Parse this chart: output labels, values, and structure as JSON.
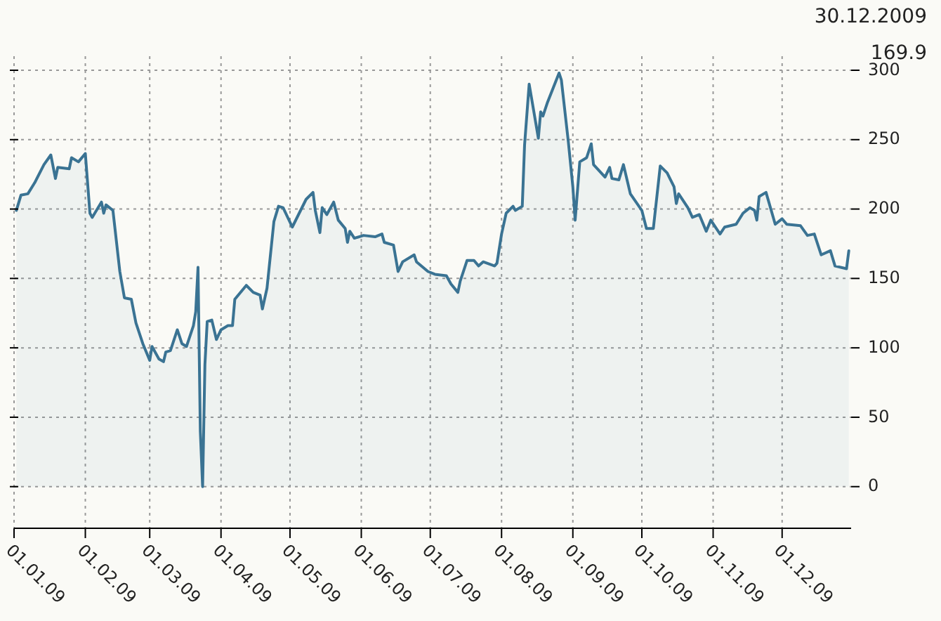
{
  "chart_data": {
    "type": "area",
    "x": [
      "2009-01-02",
      "2009-01-04",
      "2009-01-07",
      "2009-01-10",
      "2009-01-14",
      "2009-01-17",
      "2009-01-19",
      "2009-01-20",
      "2009-01-25",
      "2009-01-26",
      "2009-01-29",
      "2009-02-01",
      "2009-02-03",
      "2009-02-04",
      "2009-02-08",
      "2009-02-09",
      "2009-02-10",
      "2009-02-13",
      "2009-02-16",
      "2009-02-18",
      "2009-02-21",
      "2009-02-23",
      "2009-02-26",
      "2009-03-01",
      "2009-03-02",
      "2009-03-05",
      "2009-03-07",
      "2009-03-08",
      "2009-03-10",
      "2009-03-13",
      "2009-03-15",
      "2009-03-17",
      "2009-03-20",
      "2009-03-21",
      "2009-03-22",
      "2009-03-23",
      "2009-03-24",
      "2009-03-25",
      "2009-03-26",
      "2009-03-28",
      "2009-03-30",
      "2009-04-01",
      "2009-04-04",
      "2009-04-06",
      "2009-04-07",
      "2009-04-12",
      "2009-04-15",
      "2009-04-18",
      "2009-04-19",
      "2009-04-21",
      "2009-04-24",
      "2009-04-26",
      "2009-04-28",
      "2009-05-02",
      "2009-05-08",
      "2009-05-11",
      "2009-05-12",
      "2009-05-14",
      "2009-05-15",
      "2009-05-17",
      "2009-05-20",
      "2009-05-22",
      "2009-05-25",
      "2009-05-26",
      "2009-05-27",
      "2009-05-29",
      "2009-06-02",
      "2009-06-07",
      "2009-06-10",
      "2009-06-11",
      "2009-06-15",
      "2009-06-17",
      "2009-06-19",
      "2009-06-24",
      "2009-06-25",
      "2009-06-30",
      "2009-07-03",
      "2009-07-08",
      "2009-07-10",
      "2009-07-13",
      "2009-07-14",
      "2009-07-17",
      "2009-07-20",
      "2009-07-22",
      "2009-07-24",
      "2009-07-29",
      "2009-07-30",
      "2009-08-01",
      "2009-08-03",
      "2009-08-06",
      "2009-08-07",
      "2009-08-10",
      "2009-08-11",
      "2009-08-13",
      "2009-08-17",
      "2009-08-18",
      "2009-08-19",
      "2009-08-21",
      "2009-08-26",
      "2009-08-27",
      "2009-08-30",
      "2009-09-01",
      "2009-09-02",
      "2009-09-04",
      "2009-09-07",
      "2009-09-09",
      "2009-09-10",
      "2009-09-15",
      "2009-09-17",
      "2009-09-18",
      "2009-09-21",
      "2009-09-23",
      "2009-09-26",
      "2009-10-01",
      "2009-10-03",
      "2009-10-06",
      "2009-10-09",
      "2009-10-12",
      "2009-10-15",
      "2009-10-16",
      "2009-10-17",
      "2009-10-21",
      "2009-10-23",
      "2009-10-26",
      "2009-10-29",
      "2009-10-31",
      "2009-11-04",
      "2009-11-06",
      "2009-11-11",
      "2009-11-14",
      "2009-11-17",
      "2009-11-19",
      "2009-11-20",
      "2009-11-21",
      "2009-11-24",
      "2009-11-28",
      "2009-12-01",
      "2009-12-03",
      "2009-12-09",
      "2009-12-12",
      "2009-12-15",
      "2009-12-18",
      "2009-12-22",
      "2009-12-24",
      "2009-12-29",
      "2009-12-30"
    ],
    "series": [
      {
        "color": "#3a7393",
        "values": [
          199,
          210,
          211,
          219,
          232,
          239,
          222,
          230,
          229,
          237,
          234,
          240,
          197,
          194,
          205,
          197,
          203,
          199,
          155,
          136,
          135,
          118,
          103,
          91,
          101,
          92,
          90,
          97,
          98,
          113,
          103,
          101,
          116,
          126,
          158,
          40,
          0,
          88,
          119,
          120,
          106,
          113,
          116,
          116,
          135,
          145,
          140,
          138,
          128,
          143,
          191,
          202,
          201,
          187,
          207,
          212,
          199,
          183,
          201,
          196,
          205,
          192,
          186,
          176,
          184,
          179,
          181,
          180,
          182,
          176,
          174,
          155,
          162,
          167,
          162,
          155,
          153,
          152,
          146,
          140,
          148,
          163,
          163,
          159,
          162,
          159,
          161,
          182,
          197,
          202,
          199,
          202,
          246,
          290,
          251,
          270,
          267,
          277,
          298,
          293,
          249,
          216,
          192,
          234,
          237,
          247,
          232,
          223,
          230,
          222,
          221,
          232,
          211,
          199,
          186,
          186,
          231,
          226,
          216,
          204,
          211,
          201,
          194,
          196,
          184,
          192,
          182,
          187,
          189,
          197,
          201,
          199,
          192,
          209,
          212,
          189,
          193,
          189,
          188,
          181,
          182,
          167,
          170,
          159,
          157,
          169.9
        ]
      }
    ],
    "xlim": [
      "2009-01-01",
      "2009-12-31"
    ],
    "xticks": [
      {
        "value": "2009-01-01",
        "label": "01.01.09"
      },
      {
        "value": "2009-02-01",
        "label": "01.02.09"
      },
      {
        "value": "2009-03-01",
        "label": "01.03.09"
      },
      {
        "value": "2009-04-01",
        "label": "01.04.09"
      },
      {
        "value": "2009-05-01",
        "label": "01.05.09"
      },
      {
        "value": "2009-06-01",
        "label": "01.06.09"
      },
      {
        "value": "2009-07-01",
        "label": "01.07.09"
      },
      {
        "value": "2009-08-01",
        "label": "01.08.09"
      },
      {
        "value": "2009-09-01",
        "label": "01.09.09"
      },
      {
        "value": "2009-10-01",
        "label": "01.10.09"
      },
      {
        "value": "2009-11-01",
        "label": "01.11.09"
      },
      {
        "value": "2009-12-01",
        "label": "01.12.09"
      }
    ],
    "ylim": [
      -30,
      300
    ],
    "yticks": [
      0,
      50,
      100,
      150,
      200,
      250,
      300
    ],
    "grid": true,
    "annotations": [
      "30.12.2009",
      "169.9"
    ]
  }
}
